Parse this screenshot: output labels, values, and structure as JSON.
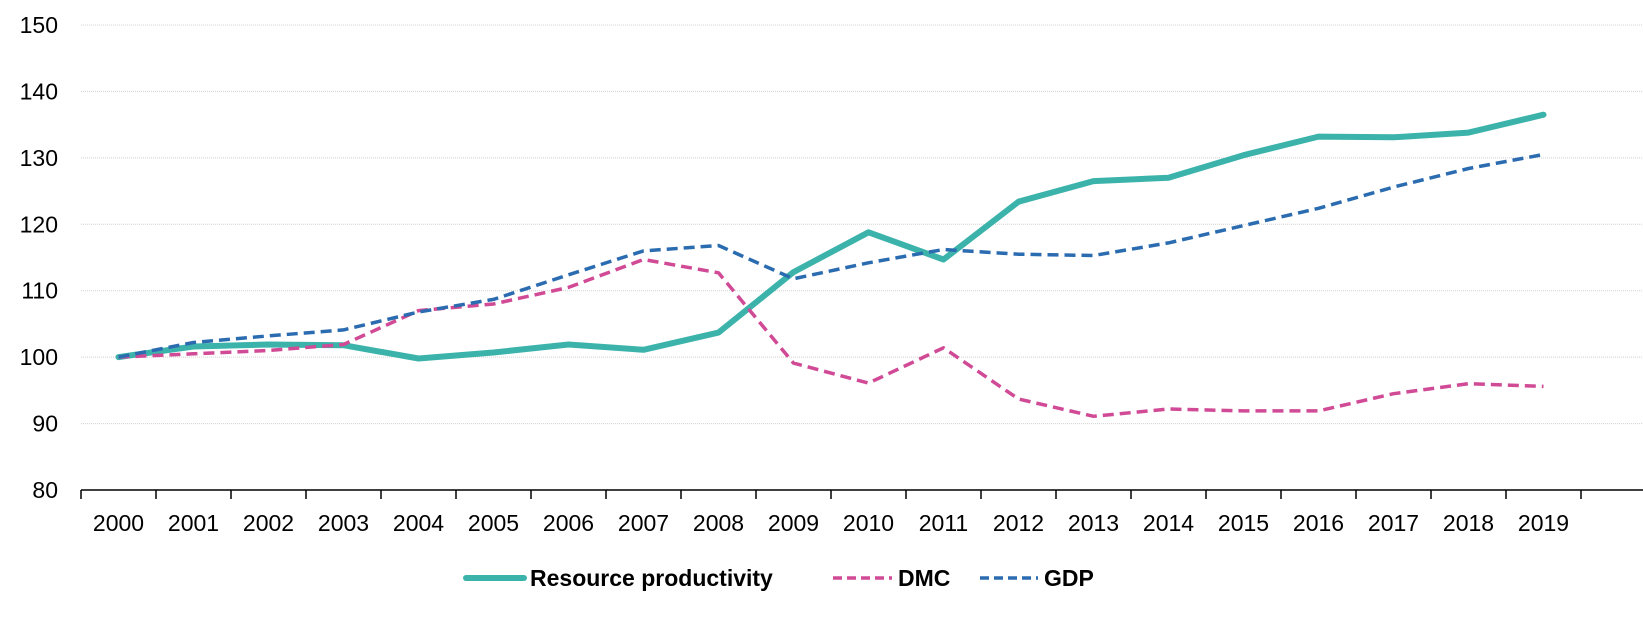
{
  "chart_data": {
    "type": "line",
    "title": "",
    "xlabel": "",
    "ylabel": "",
    "x": [
      "2000",
      "2001",
      "2002",
      "2003",
      "2004",
      "2005",
      "2006",
      "2007",
      "2008",
      "2009",
      "2010",
      "2011",
      "2012",
      "2013",
      "2014",
      "2015",
      "2016",
      "2017",
      "2018",
      "2019"
    ],
    "ylim": [
      80,
      150
    ],
    "yticks": [
      80,
      90,
      100,
      110,
      120,
      130,
      140,
      150
    ],
    "grid": true,
    "legend_position": "bottom",
    "series": [
      {
        "name": "Resource productivity",
        "style": "solid",
        "color": "#3BB3AB",
        "values": [
          100,
          101.6,
          101.9,
          101.8,
          99.8,
          100.7,
          101.9,
          101.1,
          103.7,
          112.8,
          118.8,
          114.7,
          123.4,
          126.5,
          127.0,
          130.4,
          133.2,
          133.1,
          133.8,
          136.5
        ]
      },
      {
        "name": "DMC",
        "style": "dashed",
        "color": "#D04A96",
        "values": [
          100,
          100.5,
          101.0,
          101.9,
          107.0,
          108.0,
          110.5,
          114.7,
          112.7,
          99.1,
          96.1,
          101.4,
          93.7,
          91.1,
          92.2,
          91.9,
          91.9,
          94.5,
          96.0,
          95.6
        ]
      },
      {
        "name": "GDP",
        "style": "dashed",
        "color": "#2B6CB0",
        "values": [
          100,
          102.2,
          103.2,
          104.1,
          106.8,
          108.7,
          112.4,
          116.0,
          116.8,
          111.8,
          114.2,
          116.2,
          115.5,
          115.3,
          117.2,
          119.8,
          122.4,
          125.6,
          128.4,
          130.5
        ]
      }
    ]
  }
}
